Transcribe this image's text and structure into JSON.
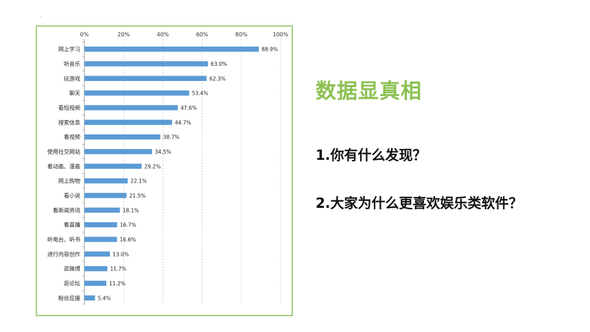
{
  "colors": {
    "bar": "#5b9bd5",
    "frame": "#a3cf7e",
    "heading": "#8cc152",
    "grid": "#c8c8c8"
  },
  "corner_mark": ".",
  "heading": "数据显真相",
  "questions": [
    "1.你有什么发现？",
    "2.大家为什么更喜欢娱乐类软件？"
  ],
  "chart_data": {
    "type": "bar",
    "orientation": "horizontal",
    "xlim": [
      0,
      100
    ],
    "x_ticks": [
      "0%",
      "20%",
      "40%",
      "60%",
      "80%",
      "100%"
    ],
    "grid": true,
    "categories": [
      "网上学习",
      "听音乐",
      "玩游戏",
      "聊天",
      "看短视频",
      "搜索信息",
      "看视频",
      "使用社交网站",
      "看动画、漫画",
      "网上购物",
      "看小说",
      "看新闻资讯",
      "看直播",
      "听电台、听书",
      "进行内容创作",
      "逛微博",
      "逛论坛",
      "粉丝应援"
    ],
    "values": [
      88.9,
      63.0,
      62.3,
      53.4,
      47.6,
      44.7,
      38.7,
      34.5,
      29.2,
      22.1,
      21.5,
      18.1,
      16.7,
      16.6,
      13.0,
      11.7,
      11.2,
      5.4
    ],
    "value_labels": [
      "88.9%",
      "63.0%",
      "62.3%",
      "53.4%",
      "47.6%",
      "44.7%",
      "38.7%",
      "34.5%",
      "29.2%",
      "22.1%",
      "21.5%",
      "18.1%",
      "16.7%",
      "16.6%",
      "13.0%",
      "11.7%",
      "11.2%",
      "5.4%"
    ]
  }
}
